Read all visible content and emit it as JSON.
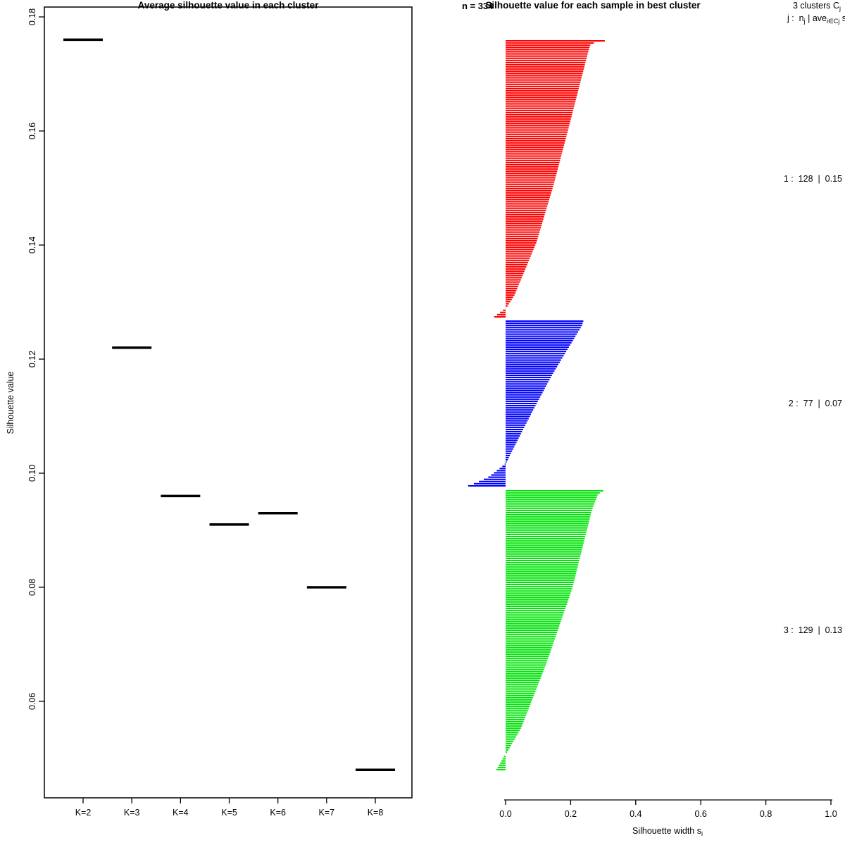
{
  "page": {
    "background": "#ffffff",
    "text_color": "#000000"
  },
  "left_panel": {
    "title": "Average silhouette value in each cluster",
    "ylabel": "Silhouette value"
  },
  "right_panel": {
    "title": "Silhouette value for each sample in best cluster",
    "n_label": "n = 334",
    "header_rich": [
      {
        "t": "3 clusters C"
      },
      {
        "t": "j",
        "sub": true
      }
    ],
    "subheader_rich": [
      {
        "t": "j :  n"
      },
      {
        "t": "j",
        "sub": true
      },
      {
        "t": " | ave"
      },
      {
        "t": "i∈Cj",
        "sub": true
      },
      {
        "t": " s"
      },
      {
        "t": "i",
        "sub": true
      }
    ],
    "xlabel_rich": [
      {
        "t": "Silhouette width s"
      },
      {
        "t": "i",
        "sub": true
      }
    ]
  },
  "chart_data": [
    {
      "type": "scatter",
      "title": "Average silhouette value in each cluster",
      "xlabel": "",
      "ylabel": "Silhouette value",
      "categories": [
        "K=2",
        "K=3",
        "K=4",
        "K=5",
        "K=6",
        "K=7",
        "K=8"
      ],
      "values": [
        0.176,
        0.122,
        0.096,
        0.091,
        0.093,
        0.08,
        0.048
      ],
      "yticks": [
        0.18,
        0.16,
        0.14,
        0.12,
        0.1,
        0.08,
        0.06
      ],
      "ylim": [
        0.043,
        0.182
      ],
      "marker": "horizontal-segment",
      "marker_color": "#000000",
      "grid": false
    },
    {
      "type": "bar",
      "orientation": "horizontal",
      "title": "Silhouette value for each sample in best cluster",
      "n_total": 334,
      "n_label": "n = 334",
      "xlabel": "Silhouette width si",
      "xticks": [
        0.0,
        0.2,
        0.4,
        0.6,
        0.8,
        1.0
      ],
      "xlim": [
        0.0,
        1.0
      ],
      "grid": false,
      "clusters": [
        {
          "id": 1,
          "n": 128,
          "avg_width": 0.15,
          "color": "#ff0000",
          "label": "1 :  128  |  0.15",
          "max": 0.305,
          "min": -0.035,
          "profile": [
            [
              0,
              0.305
            ],
            [
              0.01,
              0.262
            ],
            [
              0.035,
              0.255
            ],
            [
              0.31,
              0.195
            ],
            [
              0.52,
              0.148
            ],
            [
              0.73,
              0.095
            ],
            [
              0.92,
              0.028
            ],
            [
              0.967,
              0.003
            ],
            [
              0.978,
              -0.01
            ],
            [
              1,
              -0.035
            ]
          ]
        },
        {
          "id": 2,
          "n": 77,
          "avg_width": 0.07,
          "color": "#0000ff",
          "label": "2 :  77  |  0.07",
          "max": 0.239,
          "min": -0.115,
          "profile": [
            [
              0,
              0.239
            ],
            [
              0.03,
              0.234
            ],
            [
              0.14,
              0.2
            ],
            [
              0.33,
              0.142
            ],
            [
              0.55,
              0.082
            ],
            [
              0.75,
              0.03
            ],
            [
              0.86,
              0.002
            ],
            [
              0.885,
              -0.012
            ],
            [
              0.95,
              -0.055
            ],
            [
              0.985,
              -0.095
            ],
            [
              1,
              -0.115
            ]
          ]
        },
        {
          "id": 3,
          "n": 129,
          "avg_width": 0.13,
          "color": "#00e308",
          "label": "3 :  129  |  0.13",
          "max": 0.3,
          "min": -0.028,
          "profile": [
            [
              0,
              0.3
            ],
            [
              0.012,
              0.284
            ],
            [
              0.07,
              0.265
            ],
            [
              0.35,
              0.205
            ],
            [
              0.62,
              0.125
            ],
            [
              0.85,
              0.048
            ],
            [
              0.935,
              0.006
            ],
            [
              0.955,
              -0.006
            ],
            [
              1,
              -0.028
            ]
          ]
        }
      ]
    }
  ]
}
